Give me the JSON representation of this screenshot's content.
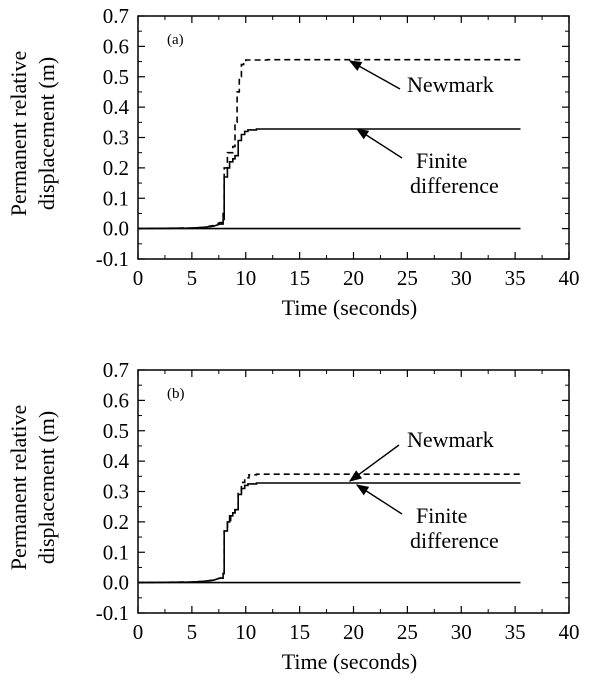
{
  "chart_data": [
    {
      "type": "line",
      "panel_label": "(a)",
      "xlabel": "Time (seconds)",
      "ylabel": "Permanent relative displacement (m)",
      "ylabel_lines": [
        "Permanent relative",
        "displacement (m)"
      ],
      "xlim": [
        0,
        40
      ],
      "ylim": [
        -0.1,
        0.7
      ],
      "x_ticks": [
        "0",
        "5",
        "10",
        "15",
        "20",
        "25",
        "30",
        "35",
        "40"
      ],
      "y_ticks": [
        "-0.1",
        "0.0",
        "0.1",
        "0.2",
        "0.3",
        "0.4",
        "0.5",
        "0.6",
        "0.7"
      ],
      "grid": false,
      "annotations": [
        {
          "lines": [
            "Newmark"
          ],
          "series": "Newmark"
        },
        {
          "lines": [
            "Finite",
            "difference"
          ],
          "series": "Finite difference"
        }
      ],
      "series": [
        {
          "name": "Newmark",
          "style": "dashed",
          "x": [
            0,
            5,
            6,
            7,
            7.6,
            7.9,
            8.0,
            8.3,
            8.6,
            8.8,
            9.0,
            9.2,
            9.4,
            9.6,
            9.8,
            10.0,
            12,
            15,
            20,
            25,
            30,
            35.5
          ],
          "y": [
            0,
            0.002,
            0.004,
            0.01,
            0.02,
            0.05,
            0.2,
            0.25,
            0.25,
            0.27,
            0.35,
            0.45,
            0.5,
            0.54,
            0.55,
            0.555,
            0.556,
            0.556,
            0.556,
            0.556,
            0.556,
            0.556
          ]
        },
        {
          "name": "Finite difference",
          "style": "solid",
          "x": [
            0,
            5,
            6,
            7,
            7.6,
            7.9,
            8.0,
            8.3,
            8.5,
            8.8,
            9.0,
            9.3,
            9.6,
            9.9,
            10.2,
            11,
            15,
            20,
            25,
            30,
            35.5
          ],
          "y": [
            0,
            0.002,
            0.004,
            0.008,
            0.015,
            0.03,
            0.17,
            0.2,
            0.22,
            0.23,
            0.24,
            0.29,
            0.31,
            0.32,
            0.325,
            0.328,
            0.328,
            0.328,
            0.328,
            0.328,
            0.328
          ]
        },
        {
          "name": "",
          "style": "solid",
          "x": [
            0,
            35.5
          ],
          "y": [
            0,
            0
          ]
        }
      ]
    },
    {
      "type": "line",
      "panel_label": "(b)",
      "xlabel": "Time (seconds)",
      "ylabel": "Permanent relative displacement (m)",
      "ylabel_lines": [
        "Permanent relative",
        "displacement (m)"
      ],
      "xlim": [
        0,
        40
      ],
      "ylim": [
        -0.1,
        0.7
      ],
      "x_ticks": [
        "0",
        "5",
        "10",
        "15",
        "20",
        "25",
        "30",
        "35",
        "40"
      ],
      "y_ticks": [
        "-0.1",
        "0.0",
        "0.1",
        "0.2",
        "0.3",
        "0.4",
        "0.5",
        "0.6",
        "0.7"
      ],
      "grid": false,
      "annotations": [
        {
          "lines": [
            "Newmark"
          ],
          "series": "Newmark"
        },
        {
          "lines": [
            "Finite",
            "difference"
          ],
          "series": "Finite difference"
        }
      ],
      "series": [
        {
          "name": "Newmark",
          "style": "dashed",
          "x": [
            0,
            5,
            6,
            7,
            7.6,
            7.9,
            8.0,
            8.3,
            8.6,
            8.8,
            9.0,
            9.3,
            9.6,
            9.9,
            10.3,
            11,
            15,
            20,
            25,
            30,
            35.5
          ],
          "y": [
            0,
            0.002,
            0.004,
            0.008,
            0.015,
            0.03,
            0.17,
            0.2,
            0.22,
            0.23,
            0.24,
            0.3,
            0.33,
            0.345,
            0.355,
            0.357,
            0.357,
            0.357,
            0.357,
            0.357,
            0.357
          ]
        },
        {
          "name": "Finite difference",
          "style": "solid",
          "x": [
            0,
            5,
            6,
            7,
            7.6,
            7.9,
            8.0,
            8.3,
            8.5,
            8.8,
            9.0,
            9.3,
            9.6,
            9.9,
            10.2,
            11,
            15,
            20,
            25,
            30,
            35.5
          ],
          "y": [
            0,
            0.002,
            0.004,
            0.008,
            0.015,
            0.03,
            0.17,
            0.2,
            0.22,
            0.23,
            0.24,
            0.29,
            0.31,
            0.32,
            0.325,
            0.328,
            0.328,
            0.328,
            0.328,
            0.328,
            0.328
          ]
        },
        {
          "name": "",
          "style": "solid",
          "x": [
            0,
            35.5
          ],
          "y": [
            0,
            0
          ]
        }
      ]
    }
  ]
}
